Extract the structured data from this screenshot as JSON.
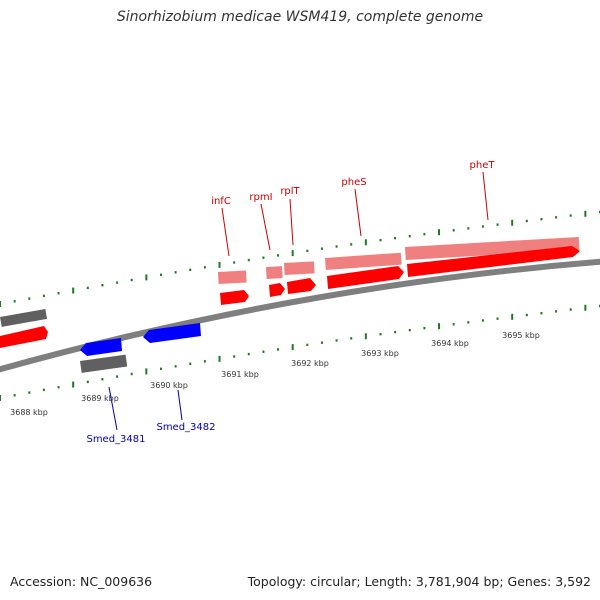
{
  "title": "Sinorhizobium medicae WSM419, complete genome",
  "footer": {
    "accession": "Accession: NC_009636",
    "topology": "Topology: circular; Length: 3,781,904 bp; Genes: 3,592"
  },
  "colors": {
    "backbone": "#7f7f7f",
    "forward_gene": "#ff0000",
    "forward_gene_light": "#f08080",
    "reverse_gene": "#0000ff",
    "gray_feature": "#555555",
    "tick": "#1f7a1f",
    "forward_label": "#cc0000",
    "reverse_label": "#0000aa",
    "scale_label": "#333333"
  },
  "scale_labels": [
    "3688 kbp",
    "3689 kbp",
    "3690 kbp",
    "3691 kbp",
    "3692 kbp",
    "3693 kbp",
    "3694 kbp",
    "3695 kbp"
  ],
  "forward_genes": [
    {
      "name": "infC"
    },
    {
      "name": "rpmI"
    },
    {
      "name": "rplT"
    },
    {
      "name": "pheS"
    },
    {
      "name": "pheT"
    }
  ],
  "reverse_genes": [
    {
      "name": "Smed_3481"
    },
    {
      "name": "Smed_3482"
    }
  ]
}
